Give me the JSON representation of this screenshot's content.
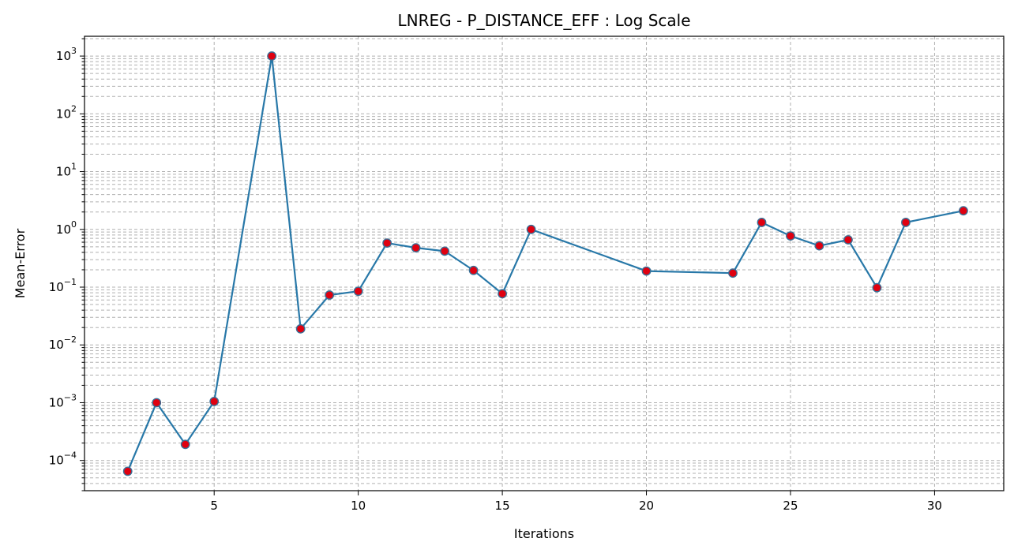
{
  "chart_data": {
    "type": "line",
    "title": "LNREG - P_DISTANCE_EFF : Log Scale",
    "xlabel": "Iterations",
    "ylabel": "Mean-Error",
    "yscale": "log",
    "xlim": [
      0.5,
      32.4
    ],
    "ylim": [
      3e-05,
      2200
    ],
    "x_ticks": [
      5,
      10,
      15,
      20,
      25,
      30
    ],
    "y_ticks": [
      {
        "value": 0.0001,
        "base": "10",
        "exp": "−4"
      },
      {
        "value": 0.001,
        "base": "10",
        "exp": "−3"
      },
      {
        "value": 0.01,
        "base": "10",
        "exp": "−2"
      },
      {
        "value": 0.1,
        "base": "10",
        "exp": "−1"
      },
      {
        "value": 1,
        "base": "10",
        "exp": "0"
      },
      {
        "value": 10,
        "base": "10",
        "exp": "1"
      },
      {
        "value": 100,
        "base": "10",
        "exp": "2"
      },
      {
        "value": 1000,
        "base": "10",
        "exp": "3"
      }
    ],
    "grid": true,
    "line_color": "#2878a8",
    "marker_face_color": "#e00010",
    "marker_edge_color": "#3a6f96",
    "series": [
      {
        "x": [
          2,
          3,
          4,
          5,
          7,
          8,
          9,
          10,
          11,
          12,
          13,
          14,
          15,
          16,
          20,
          23,
          24,
          25,
          26,
          27,
          28,
          29,
          31
        ],
        "y": [
          6.5e-05,
          0.001,
          0.00019,
          0.00105,
          1000,
          0.019,
          0.073,
          0.085,
          0.58,
          0.48,
          0.42,
          0.195,
          0.077,
          1.0,
          0.19,
          0.175,
          1.32,
          0.77,
          0.52,
          0.66,
          0.098,
          1.32,
          2.1
        ]
      }
    ]
  }
}
